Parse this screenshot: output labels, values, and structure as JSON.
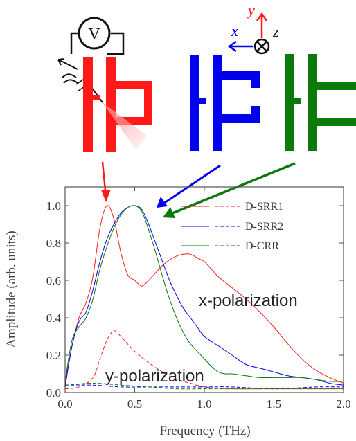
{
  "colors": {
    "red": "#ff1a1a",
    "blue": "#0000ee",
    "green": "#0a7a0a",
    "axis": "#555555",
    "text": "#333333"
  },
  "voltmeter": {
    "symbol": "V"
  },
  "coords": {
    "x": "x",
    "y": "y",
    "z": "z"
  },
  "annotations": {
    "x_pol": "x-polarization",
    "y_pol": "y-polarization"
  },
  "chart_data": {
    "type": "line",
    "title": "",
    "xlabel": "Frequency (THz)",
    "ylabel": "Amplitude (arb. units)",
    "xlim": [
      0.0,
      2.0
    ],
    "ylim": [
      0.0,
      1.1
    ],
    "xticks": [
      "0.0",
      "0.5",
      "1.0",
      "1.5",
      "2.0"
    ],
    "yticks": [
      "0.0",
      "0.2",
      "0.4",
      "0.6",
      "0.8",
      "1.0"
    ],
    "grid": false,
    "legend_position": "top-right",
    "legend": [
      {
        "name": "D-SRR1",
        "color": "red"
      },
      {
        "name": "D-SRR2",
        "color": "blue"
      },
      {
        "name": "D-CRR",
        "color": "green"
      }
    ],
    "series": [
      {
        "name": "D-SRR1",
        "polarization": "x",
        "color": "red",
        "dash": false,
        "points": [
          [
            0,
            0.05
          ],
          [
            0.05,
            0.25
          ],
          [
            0.1,
            0.4
          ],
          [
            0.15,
            0.48
          ],
          [
            0.2,
            0.62
          ],
          [
            0.25,
            0.88
          ],
          [
            0.3,
            1.0
          ],
          [
            0.35,
            0.93
          ],
          [
            0.4,
            0.75
          ],
          [
            0.45,
            0.63
          ],
          [
            0.5,
            0.6
          ],
          [
            0.55,
            0.57
          ],
          [
            0.6,
            0.6
          ],
          [
            0.65,
            0.64
          ],
          [
            0.7,
            0.68
          ],
          [
            0.75,
            0.71
          ],
          [
            0.8,
            0.73
          ],
          [
            0.85,
            0.74
          ],
          [
            0.9,
            0.74
          ],
          [
            0.95,
            0.72
          ],
          [
            1.0,
            0.7
          ],
          [
            1.05,
            0.66
          ],
          [
            1.1,
            0.62
          ],
          [
            1.2,
            0.56
          ],
          [
            1.3,
            0.5
          ],
          [
            1.4,
            0.43
          ],
          [
            1.5,
            0.35
          ],
          [
            1.6,
            0.26
          ],
          [
            1.7,
            0.18
          ],
          [
            1.8,
            0.12
          ],
          [
            1.9,
            0.08
          ],
          [
            2.0,
            0.05
          ]
        ]
      },
      {
        "name": "D-SRR2",
        "polarization": "x",
        "color": "blue",
        "dash": false,
        "points": [
          [
            0,
            0.03
          ],
          [
            0.05,
            0.25
          ],
          [
            0.1,
            0.38
          ],
          [
            0.15,
            0.43
          ],
          [
            0.2,
            0.55
          ],
          [
            0.25,
            0.7
          ],
          [
            0.3,
            0.82
          ],
          [
            0.35,
            0.9
          ],
          [
            0.4,
            0.96
          ],
          [
            0.45,
            0.99
          ],
          [
            0.5,
            1.0
          ],
          [
            0.55,
            0.98
          ],
          [
            0.6,
            0.9
          ],
          [
            0.65,
            0.8
          ],
          [
            0.7,
            0.7
          ],
          [
            0.75,
            0.6
          ],
          [
            0.8,
            0.52
          ],
          [
            0.85,
            0.45
          ],
          [
            0.9,
            0.4
          ],
          [
            0.95,
            0.35
          ],
          [
            1.0,
            0.3
          ],
          [
            1.1,
            0.25
          ],
          [
            1.2,
            0.2
          ],
          [
            1.3,
            0.15
          ],
          [
            1.4,
            0.13
          ],
          [
            1.5,
            0.11
          ],
          [
            1.6,
            0.09
          ],
          [
            1.7,
            0.08
          ],
          [
            1.8,
            0.07
          ],
          [
            1.9,
            0.05
          ],
          [
            2.0,
            0.04
          ]
        ]
      },
      {
        "name": "D-CRR",
        "polarization": "x",
        "color": "green",
        "dash": false,
        "points": [
          [
            0,
            0.06
          ],
          [
            0.05,
            0.28
          ],
          [
            0.1,
            0.35
          ],
          [
            0.15,
            0.4
          ],
          [
            0.2,
            0.5
          ],
          [
            0.25,
            0.66
          ],
          [
            0.3,
            0.78
          ],
          [
            0.35,
            0.88
          ],
          [
            0.4,
            0.95
          ],
          [
            0.45,
            0.99
          ],
          [
            0.5,
            1.0
          ],
          [
            0.55,
            0.97
          ],
          [
            0.6,
            0.87
          ],
          [
            0.65,
            0.75
          ],
          [
            0.7,
            0.62
          ],
          [
            0.75,
            0.5
          ],
          [
            0.8,
            0.4
          ],
          [
            0.85,
            0.32
          ],
          [
            0.9,
            0.26
          ],
          [
            0.95,
            0.22
          ],
          [
            1.0,
            0.18
          ],
          [
            1.05,
            0.14
          ],
          [
            1.1,
            0.11
          ],
          [
            1.15,
            0.1
          ],
          [
            1.2,
            0.1
          ],
          [
            1.3,
            0.09
          ],
          [
            1.4,
            0.08
          ],
          [
            1.5,
            0.08
          ],
          [
            1.6,
            0.08
          ],
          [
            1.7,
            0.08
          ],
          [
            1.8,
            0.07
          ],
          [
            1.9,
            0.06
          ],
          [
            2.0,
            0.06
          ]
        ]
      },
      {
        "name": "D-SRR1",
        "polarization": "y",
        "color": "red",
        "dash": true,
        "points": [
          [
            0,
            0.02
          ],
          [
            0.1,
            0.03
          ],
          [
            0.2,
            0.08
          ],
          [
            0.25,
            0.18
          ],
          [
            0.3,
            0.28
          ],
          [
            0.35,
            0.33
          ],
          [
            0.4,
            0.3
          ],
          [
            0.45,
            0.26
          ],
          [
            0.5,
            0.22
          ],
          [
            0.6,
            0.16
          ],
          [
            0.7,
            0.11
          ],
          [
            0.8,
            0.07
          ],
          [
            0.9,
            0.05
          ],
          [
            1.0,
            0.03
          ],
          [
            1.2,
            0.02
          ],
          [
            1.5,
            0.02
          ],
          [
            2.0,
            0.02
          ]
        ]
      },
      {
        "name": "D-SRR2",
        "polarization": "y",
        "color": "blue",
        "dash": true,
        "points": [
          [
            0,
            0.04
          ],
          [
            0.2,
            0.04
          ],
          [
            0.4,
            0.03
          ],
          [
            0.6,
            0.03
          ],
          [
            0.8,
            0.03
          ],
          [
            1.0,
            0.03
          ],
          [
            1.2,
            0.03
          ],
          [
            1.5,
            0.02
          ],
          [
            1.8,
            0.03
          ],
          [
            2.0,
            0.03
          ]
        ]
      },
      {
        "name": "D-CRR",
        "polarization": "y",
        "color": "green",
        "dash": true,
        "points": [
          [
            0,
            0.04
          ],
          [
            0.2,
            0.05
          ],
          [
            0.4,
            0.04
          ],
          [
            0.6,
            0.03
          ],
          [
            0.8,
            0.02
          ],
          [
            1.0,
            0.02
          ],
          [
            1.2,
            0.02
          ],
          [
            1.5,
            0.02
          ],
          [
            1.8,
            0.02
          ],
          [
            2.0,
            0.02
          ]
        ]
      }
    ]
  }
}
